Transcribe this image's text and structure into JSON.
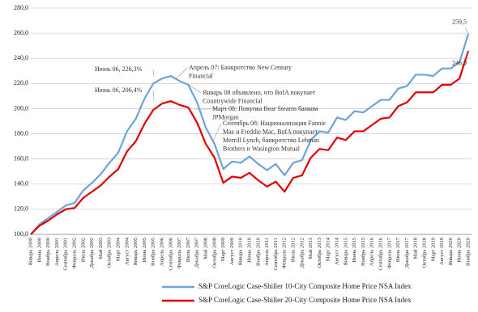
{
  "chart_data": {
    "type": "line",
    "categories": [
      "Январь 2000",
      "Июнь 2000",
      "Ноябрь 2000",
      "Апрель 2001",
      "Сентябрь 2001",
      "Февраль 2002",
      "Июль 2002",
      "Декабрь 2002",
      "Май 2003",
      "Октябрь 2003",
      "Март 2004",
      "Август 2004",
      "Январь 2005",
      "Июнь 2005",
      "Ноябрь 2005",
      "Апрель 2006",
      "Сентябрь 2006",
      "Февраль 2007",
      "Июль 2007",
      "Декабрь 2007",
      "Май 2008",
      "Октябрь 2008",
      "Март 2009",
      "Август 2009",
      "Январь 2010",
      "Июнь 2010",
      "Ноябрь 2010",
      "Апрель 2011",
      "Сентябрь 2011",
      "Февраль 2012",
      "Июль 2012",
      "Декабрь 2012",
      "Май 2013",
      "Октябрь 2013",
      "Март 2014",
      "Август 2014",
      "Январь 2015",
      "Июнь 2015",
      "Ноябрь 2015",
      "Апрель 2016",
      "Сентябрь 2016",
      "Февраль 2017",
      "Июль 2017",
      "Декабрь 2017",
      "Май 2018",
      "Октябрь 2018",
      "Март 2019",
      "Август 2019",
      "Январь 2020",
      "Июнь 2020",
      "Ноябрь 2020"
    ],
    "series": [
      {
        "name": "S&P CoreLogic Case-Shiller 10-City Composite Home Price NSA Index",
        "color": "#6fa3d8",
        "values": [
          100,
          108,
          113,
          118,
          123,
          125,
          135,
          141,
          148,
          157,
          165,
          182,
          192,
          208,
          220,
          224,
          226,
          222,
          219,
          205,
          185,
          172,
          152,
          158,
          157,
          162,
          156,
          151,
          156,
          147,
          157,
          159,
          175,
          182,
          181,
          193,
          191,
          198,
          197,
          202,
          207,
          207,
          216,
          218,
          227,
          227,
          226,
          232,
          232,
          237,
          259.5
        ],
        "value_labels": {
          "50": "259,5"
        }
      },
      {
        "name": "S&P CoreLogic Case-Shiller 20-City Composite Home Price NSA Index",
        "color": "#e00000",
        "values": [
          100,
          107,
          111,
          116,
          120,
          121,
          129,
          134,
          139,
          146,
          152,
          166,
          174,
          188,
          199,
          204,
          206,
          203,
          201,
          189,
          172,
          161,
          141,
          146,
          145,
          149,
          143,
          138,
          142,
          134,
          145,
          147,
          161,
          168,
          167,
          177,
          175,
          182,
          182,
          187,
          192,
          193,
          202,
          205,
          213,
          213,
          213,
          219,
          219,
          224,
          246.0
        ],
        "value_labels": {
          "50": "246,0"
        }
      }
    ],
    "ylim": [
      100,
      280
    ],
    "yticks": [
      {
        "value": 100,
        "label": "100,0"
      },
      {
        "value": 120,
        "label": "120,0"
      },
      {
        "value": 140,
        "label": "140,0"
      },
      {
        "value": 160,
        "label": "160,0"
      },
      {
        "value": 180,
        "label": "180,0"
      },
      {
        "value": 200,
        "label": "200,0"
      },
      {
        "value": 220,
        "label": "220,0"
      },
      {
        "value": 240,
        "label": "240,0"
      },
      {
        "value": 260,
        "label": "260,0"
      },
      {
        "value": 280,
        "label": "280,0"
      }
    ],
    "grid": true,
    "legend": "bottom",
    "annotations": [
      [
        "Июнь 06, 226,3%"
      ],
      [
        "Июнь 06, 206,4%"
      ],
      [
        "Апрель 07: Банкротство New Century",
        "Financial"
      ],
      [
        "Январь 08 объявлено, что BofA покупает",
        "Countrywide Financial"
      ],
      [
        "Март 08: Покупка Bear Stearns банком",
        "JPMorgan"
      ],
      [
        "Сентябрь 08: Национализация Fannie",
        "Mae и Freddie Mac, BofA покупает",
        "Merrill Lynch, банкротство Lehman",
        "Brothers и Wasington Mutual"
      ]
    ]
  }
}
